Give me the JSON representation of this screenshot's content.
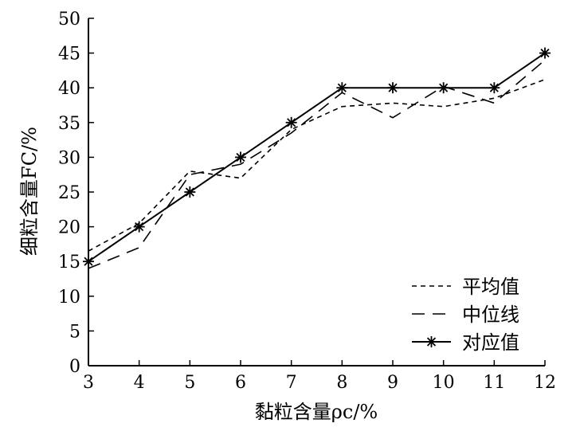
{
  "chart_data": {
    "type": "line",
    "x": [
      3,
      4,
      5,
      6,
      7,
      8,
      9,
      10,
      11,
      12
    ],
    "xlim": [
      3,
      12
    ],
    "ylim": [
      0,
      50
    ],
    "xticks": [
      3,
      4,
      5,
      6,
      7,
      8,
      9,
      10,
      11,
      12
    ],
    "yticks": [
      0,
      5,
      10,
      15,
      20,
      25,
      30,
      35,
      40,
      45,
      50
    ],
    "xlabel": "黏粒含量ρc/%",
    "ylabel": "细粒含量FC/%",
    "grid": false,
    "legend_position": "bottom-right",
    "series": [
      {
        "name": "平均值",
        "style": "dotted",
        "values": [
          16.5,
          20.5,
          28.0,
          27.0,
          34.0,
          37.3,
          37.8,
          37.3,
          38.5,
          41.2
        ]
      },
      {
        "name": "中位线",
        "style": "dashed",
        "values": [
          14.0,
          17.0,
          27.5,
          29.0,
          33.5,
          39.3,
          35.7,
          40.2,
          37.8,
          44.0
        ]
      },
      {
        "name": "对应值",
        "style": "solid-star",
        "values": [
          15.0,
          20.0,
          25.0,
          30.0,
          35.0,
          40.0,
          40.0,
          40.0,
          40.0,
          45.0
        ]
      }
    ],
    "legend": {
      "labels": [
        "平均值",
        "中位线",
        "对应值"
      ]
    }
  }
}
